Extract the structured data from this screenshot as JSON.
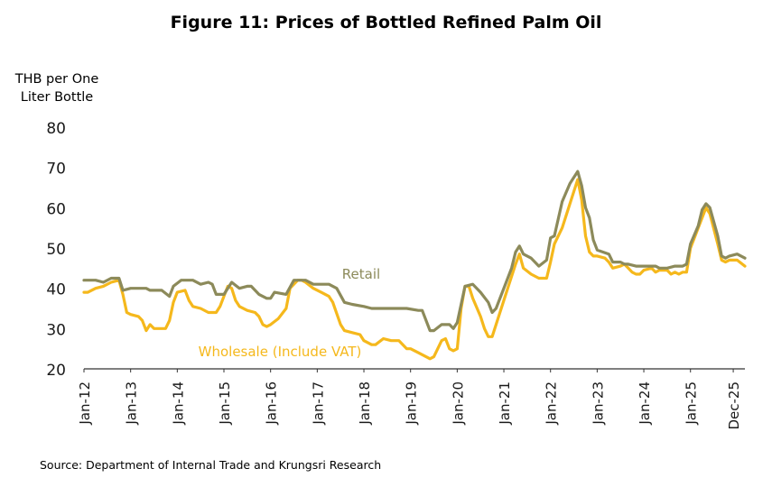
{
  "title": "Figure 11: Prices of Bottled Refined Palm Oil",
  "source": "Source: Department of Internal Trade and Krungsri Research",
  "colors": {
    "retail": "#8c8a5a",
    "wholesale": "#f5b81c",
    "axis": "#404040"
  },
  "chart_data": {
    "type": "line",
    "ylabel_lines": [
      "THB per One",
      "Liter Bottle"
    ],
    "ylim": [
      20,
      80
    ],
    "yticks": [
      20,
      30,
      40,
      50,
      60,
      70,
      80
    ],
    "xticks": [
      "Jan-12",
      "Jan-13",
      "Jan-14",
      "Jan-15",
      "Jan-16",
      "Jan-17",
      "Jan-18",
      "Jan-19",
      "Jan-20",
      "Jan-21",
      "Jan-22",
      "Jan-23",
      "Jan-24",
      "Jan-25",
      "Dec-25"
    ],
    "grid": false,
    "series": [
      {
        "name": "Retail",
        "color": "#8c8a5a",
        "points": [
          [
            "Jan-12",
            42
          ],
          [
            "Apr-12",
            42
          ],
          [
            "Jun-12",
            41.5
          ],
          [
            "Aug-12",
            42.5
          ],
          [
            "Oct-12",
            42.5
          ],
          [
            "Nov-12",
            39.5
          ],
          [
            "Jan-13",
            40
          ],
          [
            "May-13",
            40
          ],
          [
            "Jun-13",
            39.5
          ],
          [
            "Sep-13",
            39.5
          ],
          [
            "Nov-13",
            38
          ],
          [
            "Dec-13",
            40.5
          ],
          [
            "Feb-14",
            42
          ],
          [
            "May-14",
            42
          ],
          [
            "Jul-14",
            41
          ],
          [
            "Sep-14",
            41.5
          ],
          [
            "Oct-14",
            41
          ],
          [
            "Nov-14",
            38.5
          ],
          [
            "Jan-15",
            38.5
          ],
          [
            "Mar-15",
            41.5
          ],
          [
            "May-15",
            40
          ],
          [
            "Jul-15",
            40.5
          ],
          [
            "Aug-15",
            40.5
          ],
          [
            "Oct-15",
            38.5
          ],
          [
            "Dec-15",
            37.5
          ],
          [
            "Jan-16",
            37.5
          ],
          [
            "Feb-16",
            39
          ],
          [
            "May-16",
            38.5
          ],
          [
            "Jul-16",
            42
          ],
          [
            "Oct-16",
            42
          ],
          [
            "Dec-16",
            41
          ],
          [
            "Jan-17",
            41
          ],
          [
            "Apr-17",
            41
          ],
          [
            "Jun-17",
            40
          ],
          [
            "Aug-17",
            36.5
          ],
          [
            "Oct-17",
            36
          ],
          [
            "Jan-18",
            35.5
          ],
          [
            "Mar-18",
            35
          ],
          [
            "Dec-18",
            35
          ],
          [
            "Mar-19",
            34.5
          ],
          [
            "Apr-19",
            34.5
          ],
          [
            "Jun-19",
            29.5
          ],
          [
            "Jul-19",
            29.5
          ],
          [
            "Sep-19",
            31
          ],
          [
            "Nov-19",
            31
          ],
          [
            "Dec-19",
            30
          ],
          [
            "Jan-20",
            31.5
          ],
          [
            "Mar-20",
            40.5
          ],
          [
            "May-20",
            41
          ],
          [
            "Jul-20",
            39
          ],
          [
            "Sep-20",
            36.5
          ],
          [
            "Oct-20",
            34
          ],
          [
            "Nov-20",
            35
          ],
          [
            "Jan-21",
            40
          ],
          [
            "Mar-21",
            45
          ],
          [
            "Apr-21",
            49
          ],
          [
            "May-21",
            50.5
          ],
          [
            "Jun-21",
            48.5
          ],
          [
            "Aug-21",
            47.5
          ],
          [
            "Oct-21",
            45.5
          ],
          [
            "Dec-21",
            47
          ],
          [
            "Jan-22",
            52.5
          ],
          [
            "Feb-22",
            53
          ],
          [
            "Apr-22",
            61.5
          ],
          [
            "Jun-22",
            66
          ],
          [
            "Aug-22",
            69
          ],
          [
            "Sep-22",
            65.5
          ],
          [
            "Oct-22",
            60
          ],
          [
            "Nov-22",
            57.5
          ],
          [
            "Dec-22",
            52
          ],
          [
            "Jan-23",
            49.5
          ],
          [
            "Apr-23",
            48.5
          ],
          [
            "May-23",
            46.5
          ],
          [
            "Jul-23",
            46.5
          ],
          [
            "Aug-23",
            46
          ],
          [
            "Sep-23",
            46
          ],
          [
            "Nov-23",
            45.5
          ],
          [
            "Dec-23",
            45.5
          ],
          [
            "Jan-24",
            45.5
          ],
          [
            "Apr-24",
            45.5
          ],
          [
            "May-24",
            45
          ],
          [
            "Jul-24",
            45
          ],
          [
            "Sep-24",
            45.5
          ],
          [
            "Nov-24",
            45.5
          ],
          [
            "Dec-24",
            46
          ],
          [
            "Jan-25",
            51
          ],
          [
            "Mar-25",
            55.5
          ],
          [
            "Apr-25",
            59.5
          ],
          [
            "May-25",
            61
          ],
          [
            "Jun-25",
            60
          ],
          [
            "Aug-25",
            53
          ],
          [
            "Sep-25",
            48
          ],
          [
            "Oct-25",
            47.5
          ],
          [
            "Nov-25",
            48
          ],
          [
            "Jan-26",
            48.5
          ],
          [
            "Mar-26",
            47.5
          ]
        ]
      },
      {
        "name": "Wholesale (Include VAT)",
        "color": "#f5b81c",
        "points": [
          [
            "Jan-12",
            39
          ],
          [
            "Feb-12",
            39
          ],
          [
            "Apr-12",
            40
          ],
          [
            "Jun-12",
            40.5
          ],
          [
            "Aug-12",
            41.5
          ],
          [
            "Oct-12",
            42
          ],
          [
            "Nov-12",
            38.5
          ],
          [
            "Dec-12",
            34
          ],
          [
            "Jan-13",
            33.5
          ],
          [
            "Mar-13",
            33
          ],
          [
            "Apr-13",
            32
          ],
          [
            "May-13",
            29.5
          ],
          [
            "Jun-13",
            31
          ],
          [
            "Jul-13",
            30
          ],
          [
            "Oct-13",
            30
          ],
          [
            "Nov-13",
            32
          ],
          [
            "Dec-13",
            36.5
          ],
          [
            "Jan-14",
            39
          ],
          [
            "Mar-14",
            39.5
          ],
          [
            "Apr-14",
            37
          ],
          [
            "May-14",
            35.5
          ],
          [
            "Jul-14",
            35
          ],
          [
            "Sep-14",
            34
          ],
          [
            "Nov-14",
            34
          ],
          [
            "Dec-14",
            35.5
          ],
          [
            "Jan-15",
            38
          ],
          [
            "Feb-15",
            40.5
          ],
          [
            "Mar-15",
            40
          ],
          [
            "Apr-15",
            37
          ],
          [
            "May-15",
            35.5
          ],
          [
            "Jul-15",
            34.5
          ],
          [
            "Sep-15",
            34
          ],
          [
            "Oct-15",
            33
          ],
          [
            "Nov-15",
            31
          ],
          [
            "Dec-15",
            30.5
          ],
          [
            "Jan-16",
            31
          ],
          [
            "Mar-16",
            32.5
          ],
          [
            "May-16",
            35
          ],
          [
            "Jun-16",
            40
          ],
          [
            "Aug-16",
            42
          ],
          [
            "Sep-16",
            42
          ],
          [
            "Oct-16",
            41.5
          ],
          [
            "Dec-16",
            40
          ],
          [
            "Feb-17",
            39
          ],
          [
            "Apr-17",
            38
          ],
          [
            "May-17",
            36.5
          ],
          [
            "Jul-17",
            31
          ],
          [
            "Aug-17",
            29.5
          ],
          [
            "Oct-17",
            29
          ],
          [
            "Dec-17",
            28.5
          ],
          [
            "Jan-18",
            27
          ],
          [
            "Mar-18",
            26
          ],
          [
            "Apr-18",
            26
          ],
          [
            "Jun-18",
            27.5
          ],
          [
            "Aug-18",
            27
          ],
          [
            "Oct-18",
            27
          ],
          [
            "Dec-18",
            25
          ],
          [
            "Jan-19",
            25
          ],
          [
            "Mar-19",
            24
          ],
          [
            "May-19",
            23
          ],
          [
            "Jun-19",
            22.5
          ],
          [
            "Jul-19",
            23
          ],
          [
            "Sep-19",
            27
          ],
          [
            "Oct-19",
            27.5
          ],
          [
            "Nov-19",
            25
          ],
          [
            "Dec-19",
            24.5
          ],
          [
            "Jan-20",
            25
          ],
          [
            "Feb-20",
            35
          ],
          [
            "Mar-20",
            40.5
          ],
          [
            "Apr-20",
            40.5
          ],
          [
            "May-20",
            37.5
          ],
          [
            "Jul-20",
            33
          ],
          [
            "Aug-20",
            30
          ],
          [
            "Sep-20",
            28
          ],
          [
            "Oct-20",
            28
          ],
          [
            "Dec-20",
            34
          ],
          [
            "Feb-21",
            40
          ],
          [
            "Apr-21",
            46
          ],
          [
            "May-21",
            48.5
          ],
          [
            "Jun-21",
            45
          ],
          [
            "Aug-21",
            43.5
          ],
          [
            "Oct-21",
            42.5
          ],
          [
            "Dec-21",
            42.5
          ],
          [
            "Jan-22",
            46.5
          ],
          [
            "Feb-22",
            51
          ],
          [
            "Apr-22",
            55
          ],
          [
            "Jun-22",
            61
          ],
          [
            "Aug-22",
            67
          ],
          [
            "Sep-22",
            62
          ],
          [
            "Oct-22",
            53
          ],
          [
            "Nov-22",
            49
          ],
          [
            "Dec-22",
            48
          ],
          [
            "Jan-23",
            48
          ],
          [
            "Mar-23",
            47.5
          ],
          [
            "Apr-23",
            46.5
          ],
          [
            "May-23",
            45
          ],
          [
            "Jul-23",
            45.5
          ],
          [
            "Aug-23",
            46
          ],
          [
            "Sep-23",
            45
          ],
          [
            "Oct-23",
            44
          ],
          [
            "Nov-23",
            43.5
          ],
          [
            "Dec-23",
            43.5
          ],
          [
            "Jan-24",
            44.5
          ],
          [
            "Mar-24",
            45
          ],
          [
            "Apr-24",
            44
          ],
          [
            "May-24",
            44.5
          ],
          [
            "Jul-24",
            44.5
          ],
          [
            "Aug-24",
            43.5
          ],
          [
            "Sep-24",
            44
          ],
          [
            "Oct-24",
            43.5
          ],
          [
            "Nov-24",
            44
          ],
          [
            "Dec-24",
            44
          ],
          [
            "Jan-25",
            50
          ],
          [
            "Mar-25",
            55
          ],
          [
            "Apr-25",
            57.5
          ],
          [
            "May-25",
            60
          ],
          [
            "Jun-25",
            58.5
          ],
          [
            "Aug-25",
            51
          ],
          [
            "Sep-25",
            47
          ],
          [
            "Oct-25",
            46.5
          ],
          [
            "Nov-25",
            47
          ],
          [
            "Jan-26",
            47
          ],
          [
            "Mar-26",
            45.5
          ]
        ]
      }
    ]
  }
}
